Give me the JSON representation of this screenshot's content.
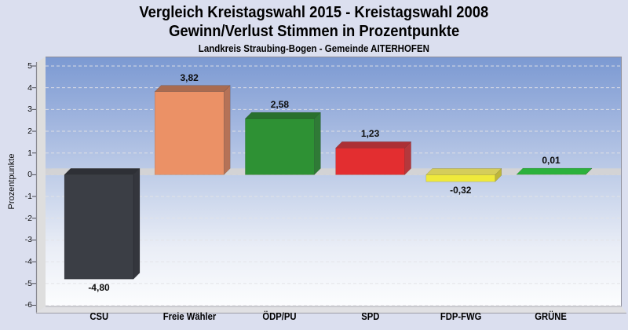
{
  "header": {
    "title_line1": "Vergleich Kreistagswahl 2015 - Kreistagswahl 2008",
    "title_line2": "Gewinn/Verlust Stimmen in Prozentpunkte",
    "subtitle": "Landkreis Straubing-Bogen - Gemeinde AITERHOFEN"
  },
  "chart_data": {
    "type": "bar",
    "title": "Vergleich Kreistagswahl 2015 - Kreistagswahl 2008",
    "subtitle": "Gewinn/Verlust Stimmen in Prozentpunkte",
    "caption": "Landkreis Straubing-Bogen - Gemeinde AITERHOFEN",
    "xlabel": "",
    "ylabel": "Prozentpunkte",
    "ylim": [
      -6,
      5
    ],
    "yticks": [
      5,
      4,
      3,
      2,
      1,
      0,
      -1,
      -2,
      -3,
      -4,
      -5,
      -6
    ],
    "grid": "dashed-horizontal",
    "legend": "none",
    "style": "3d-bars, blue gradient backwall, gray zero plane",
    "categories": [
      "CSU",
      "Freie Wähler",
      "ÖDP/PU",
      "SPD",
      "FDP-FWG",
      "GRÜNE"
    ],
    "values": [
      -4.8,
      3.82,
      2.58,
      1.23,
      -0.32,
      0.01
    ],
    "value_labels": [
      "-4,80",
      "3,82",
      "2,58",
      "1,23",
      "-0,32",
      "0,01"
    ],
    "bars": [
      {
        "party": "CSU",
        "front": "#3B3E45",
        "top": "#2E3036",
        "side": "#34363D"
      },
      {
        "party": "Freie Wähler",
        "front": "#EB9166",
        "top": "#A96B50",
        "side": "#B57257"
      },
      {
        "party": "ÖDP/PU",
        "front": "#2E9134",
        "top": "#29702E",
        "side": "#2F7A36"
      },
      {
        "party": "SPD",
        "front": "#E32E30",
        "top": "#AC3035",
        "side": "#B4383C"
      },
      {
        "party": "FDP-FWG",
        "front": "#EFE93B",
        "top": "#D5CD5A",
        "side": "#BEB63B"
      },
      {
        "party": "GRÜNE",
        "front": "#29AC39",
        "top": "#2BB13C",
        "side": "#239434"
      }
    ]
  },
  "colors": {
    "page_background": "#DBDFEF",
    "backwall_top": "#7B99D2",
    "backwall_bottom": "#FCFDFE",
    "left_wall": "#DEDEDE",
    "floor": "#E0E0E3",
    "zero_plane": "#D2D2D5",
    "gridline": "#E3E3E6",
    "plot_border": "#8E8E9A",
    "text": "#000000"
  }
}
